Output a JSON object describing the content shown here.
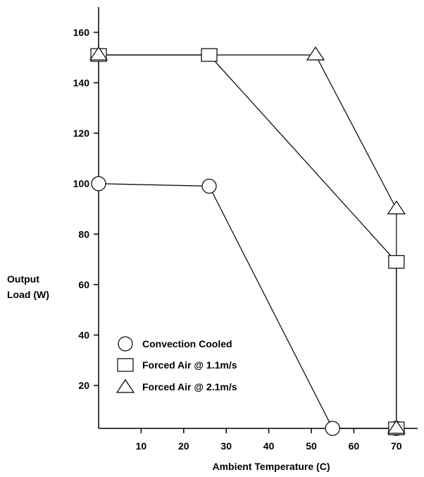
{
  "chart_data": {
    "type": "line",
    "title": "",
    "xlabel": "Ambient Temperature (C)",
    "ylabel_lines": [
      "Output",
      "Load (W)"
    ],
    "xlim": [
      0,
      75
    ],
    "ylim": [
      3,
      170
    ],
    "xticks": [
      10,
      20,
      30,
      40,
      50,
      60,
      70
    ],
    "yticks": [
      20,
      40,
      60,
      80,
      100,
      120,
      140,
      160
    ],
    "grid": false,
    "legend_placement": "lower-left",
    "series": [
      {
        "name": "Convection Cooled",
        "marker": "circle",
        "points": [
          [
            0,
            100
          ],
          [
            26,
            99
          ],
          [
            55,
            3
          ],
          [
            70,
            3
          ]
        ]
      },
      {
        "name": "Forced Air @ 1.1m/s",
        "marker": "square",
        "points": [
          [
            0,
            151
          ],
          [
            26,
            151
          ],
          [
            70,
            69
          ],
          [
            70,
            3
          ]
        ]
      },
      {
        "name": "Forced Air @ 2.1m/s",
        "marker": "triangle",
        "points": [
          [
            0,
            151
          ],
          [
            51,
            151
          ],
          [
            70,
            90
          ],
          [
            70,
            3
          ]
        ]
      }
    ]
  }
}
